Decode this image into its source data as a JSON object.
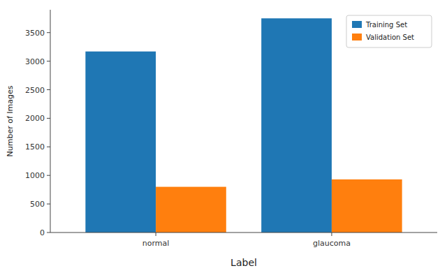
{
  "chart_data": {
    "type": "bar",
    "categories": [
      "normal",
      "glaucoma"
    ],
    "series": [
      {
        "name": "Training Set",
        "color": "#1f77b4",
        "values": [
          3170,
          3750
        ]
      },
      {
        "name": "Validation Set",
        "color": "#ff7f0e",
        "values": [
          800,
          930
        ]
      }
    ],
    "xlabel": "Label",
    "ylabel": "Number of Images",
    "ylim": [
      0,
      3900
    ],
    "yticks": [
      0,
      500,
      1000,
      1500,
      2000,
      2500,
      3000,
      3500
    ],
    "grid": false,
    "legend": "upper right"
  }
}
